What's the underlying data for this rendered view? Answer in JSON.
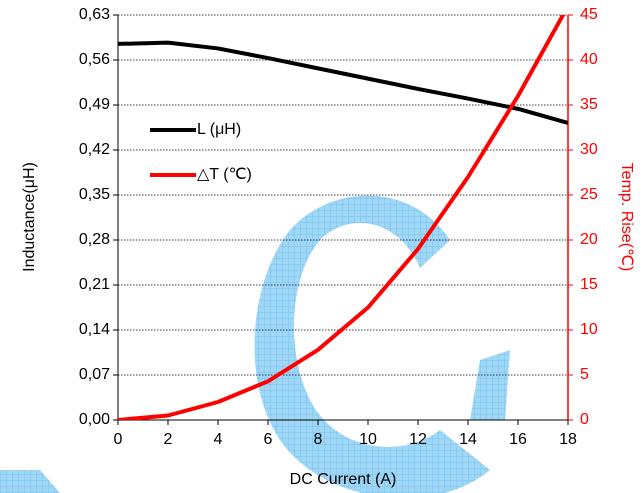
{
  "chart_data": {
    "type": "line",
    "x": [
      0,
      2,
      4,
      6,
      8,
      10,
      12,
      14,
      16,
      18
    ],
    "xlim": [
      0,
      18
    ],
    "xticks": [
      0,
      2,
      4,
      6,
      8,
      10,
      12,
      14,
      16,
      18
    ],
    "xlabel": "DC Current (A)",
    "ylabel": "Inductance(μH)",
    "y2label": "Temp. Rise(℃)",
    "ylim": [
      0,
      0.63
    ],
    "yticks": [
      {
        "value": 0,
        "label": "0,00"
      },
      {
        "value": 0.07,
        "label": "0,07"
      },
      {
        "value": 0.14,
        "label": "0,14"
      },
      {
        "value": 0.21,
        "label": "0,21"
      },
      {
        "value": 0.28,
        "label": "0,28"
      },
      {
        "value": 0.35,
        "label": "0,35"
      },
      {
        "value": 0.42,
        "label": "0,42"
      },
      {
        "value": 0.49,
        "label": "0,49"
      },
      {
        "value": 0.56,
        "label": "0,56"
      },
      {
        "value": 0.63,
        "label": "0,63"
      }
    ],
    "y2lim": [
      0,
      45
    ],
    "y2ticks": [
      0,
      5,
      10,
      15,
      20,
      25,
      30,
      35,
      40,
      45
    ],
    "grid": true,
    "series": [
      {
        "name": "L (μH)",
        "color": "#000000",
        "values": [
          0.585,
          0.587,
          0.578,
          0.563,
          0.547,
          0.531,
          0.515,
          0.5,
          0.484,
          0.462
        ]
      },
      {
        "name": "△T (℃)",
        "color": "#ff0000",
        "axis": "y2",
        "values": [
          0,
          0.5,
          2,
          4.3,
          7.8,
          12.5,
          19,
          27,
          36,
          46
        ]
      }
    ]
  }
}
